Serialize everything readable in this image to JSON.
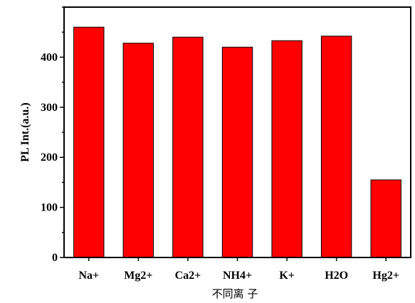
{
  "chart_data": {
    "type": "bar",
    "categories": [
      "Na+",
      "Mg2+",
      "Ca2+",
      "NH4+",
      "K+",
      "H2O",
      "Hg2+"
    ],
    "values": [
      460,
      428,
      440,
      420,
      433,
      442,
      155
    ],
    "ylabel": "PL Int.(a.u.)",
    "xlabel": "不同离 子",
    "ylim": [
      0,
      500
    ],
    "yticks": [
      0,
      100,
      200,
      300,
      400
    ],
    "grid": false,
    "bar_color": "#ff0000"
  }
}
